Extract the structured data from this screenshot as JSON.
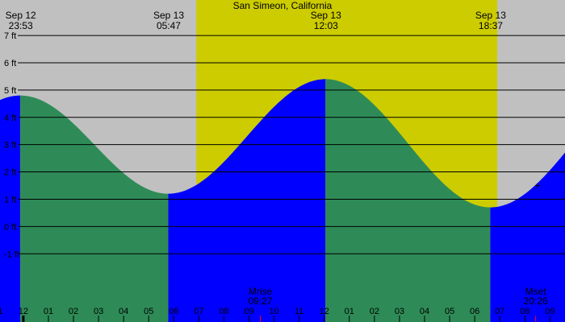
{
  "chart_data": {
    "type": "area",
    "title": "San Simeon, California",
    "y_unit": "ft",
    "ylim": [
      -3.5,
      8.3
    ],
    "y_ticks": [
      7,
      6,
      5,
      4,
      3,
      2,
      1,
      0,
      -1
    ],
    "y_tick_labels": [
      "7 ft",
      "6 ft",
      "5 ft",
      "4 ft",
      "3 ft",
      "2 ft",
      "1 ft",
      "0 ft",
      "-1 ft"
    ],
    "x_hours_range": [
      -0.93,
      21.6
    ],
    "x_ticks": [
      {
        "h": -1,
        "label": "11"
      },
      {
        "h": 0,
        "label": "12"
      },
      {
        "h": 1,
        "label": "01"
      },
      {
        "h": 2,
        "label": "02"
      },
      {
        "h": 3,
        "label": "03"
      },
      {
        "h": 4,
        "label": "04"
      },
      {
        "h": 5,
        "label": "05"
      },
      {
        "h": 6,
        "label": "06"
      },
      {
        "h": 7,
        "label": "07"
      },
      {
        "h": 8,
        "label": "08"
      },
      {
        "h": 9,
        "label": "09"
      },
      {
        "h": 10,
        "label": "10"
      },
      {
        "h": 11,
        "label": "11"
      },
      {
        "h": 12,
        "label": "12"
      },
      {
        "h": 13,
        "label": "01"
      },
      {
        "h": 14,
        "label": "02"
      },
      {
        "h": 15,
        "label": "03"
      },
      {
        "h": 16,
        "label": "04"
      },
      {
        "h": 17,
        "label": "05"
      },
      {
        "h": 18,
        "label": "06"
      },
      {
        "h": 19,
        "label": "07"
      },
      {
        "h": 20,
        "label": "08"
      },
      {
        "h": 21,
        "label": "09"
      }
    ],
    "tide_extrema": [
      {
        "h": -0.12,
        "height_ft": 4.8,
        "kind": "high",
        "date": "Sep 12",
        "time": "23:53"
      },
      {
        "h": 5.78,
        "height_ft": 1.2,
        "kind": "low",
        "date": "Sep 13",
        "time": "05:47"
      },
      {
        "h": 12.05,
        "height_ft": 5.4,
        "kind": "high",
        "date": "Sep 13",
        "time": "12:03"
      },
      {
        "h": 18.62,
        "height_ft": 0.7,
        "kind": "low",
        "date": "Sep 13",
        "time": "18:37"
      }
    ],
    "daylight": {
      "start_h": 6.9,
      "end_h": 18.9
    },
    "moon_events": [
      {
        "label": "Mrise",
        "time": "09:27",
        "h": 9.45
      },
      {
        "label": "Mset",
        "time": "20:26",
        "h": 20.43
      }
    ],
    "current_marker": {
      "h": 20.5,
      "height_ft": 1.5,
      "symbol": "+"
    },
    "grid": true
  },
  "colors": {
    "night_background": "#c0c0c0",
    "daylight_band": "#cccc00",
    "rising_tide_fill": "#0000ff",
    "falling_tide_fill": "#2e8b57",
    "grid_line": "#000000",
    "marker": "#000000",
    "moon_tick": "#ff0000",
    "now_tick": "#000000"
  }
}
